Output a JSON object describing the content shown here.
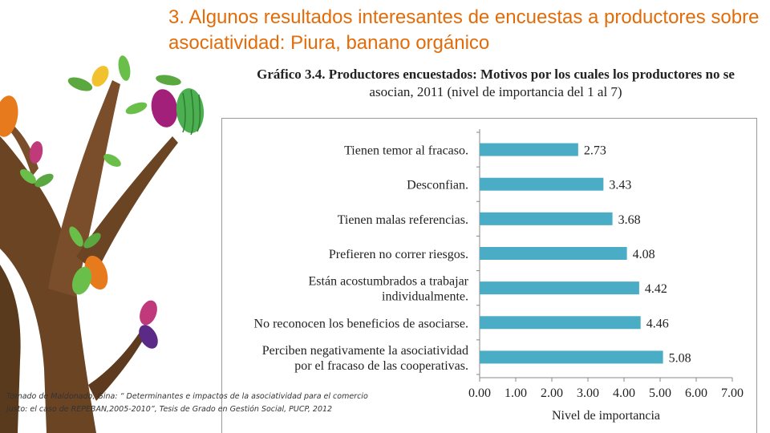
{
  "slide": {
    "title_number": "3.",
    "title_text": "Algunos resultados interesantes de encuestas a productores sobre asociatividad: Piura, banano orgánico"
  },
  "caption": {
    "bold_part": "Gráfico 3.4. Productores encuestados: Motivos por los cuales los productores no se",
    "line2": "asocian, 2011 (nivel de importancia del 1 al 7)"
  },
  "source_note": "Tomado de Maldonado, Gina: “ Determinantes  e impactos de la asociatividad para el comercio  justo: el caso de REPEBAN,2005-2010”, Tesis de Grado en Gestión Social, PUCP, 2012",
  "chart_data": {
    "type": "bar",
    "orientation": "horizontal",
    "categories": [
      [
        "Tienen temor al fracaso."
      ],
      [
        "Desconfian."
      ],
      [
        "Tienen malas referencias."
      ],
      [
        "Prefieren no correr riesgos."
      ],
      [
        "Están acostumbrados a trabajar",
        "individualmente."
      ],
      [
        "No reconocen los beneficios de asociarse."
      ],
      [
        "Perciben negativamente la asociatividad",
        "por el fracaso de las cooperativas."
      ]
    ],
    "values": [
      2.73,
      3.43,
      3.68,
      4.08,
      4.42,
      4.46,
      5.08
    ],
    "value_labels": [
      "2.73",
      "3.43",
      "3.68",
      "4.08",
      "4.42",
      "4.46",
      "5.08"
    ],
    "xlabel": "Nivel de importancia",
    "xlim": [
      0,
      7
    ],
    "xticks": [
      "0.00",
      "1.00",
      "2.00",
      "3.00",
      "4.00",
      "5.00",
      "6.00",
      "7.00"
    ],
    "bar_color": "#4bacc6",
    "grid": false
  }
}
